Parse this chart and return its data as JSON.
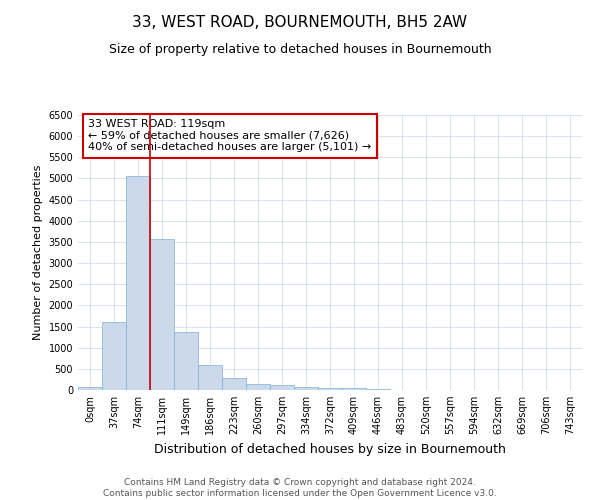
{
  "title": "33, WEST ROAD, BOURNEMOUTH, BH5 2AW",
  "subtitle": "Size of property relative to detached houses in Bournemouth",
  "xlabel": "Distribution of detached houses by size in Bournemouth",
  "ylabel": "Number of detached properties",
  "bar_color": "#ccd9ea",
  "bar_edge_color": "#7aafd4",
  "grid_color": "#c8d8e8",
  "background_color": "#ffffff",
  "categories": [
    "0sqm",
    "37sqm",
    "74sqm",
    "111sqm",
    "149sqm",
    "186sqm",
    "223sqm",
    "260sqm",
    "297sqm",
    "334sqm",
    "372sqm",
    "409sqm",
    "446sqm",
    "483sqm",
    "520sqm",
    "557sqm",
    "594sqm",
    "632sqm",
    "669sqm",
    "706sqm",
    "743sqm"
  ],
  "bar_heights": [
    75,
    1600,
    5050,
    3570,
    1380,
    590,
    290,
    150,
    120,
    75,
    40,
    40,
    30,
    0,
    0,
    0,
    0,
    0,
    0,
    0,
    0
  ],
  "ylim": [
    0,
    6500
  ],
  "yticks": [
    0,
    500,
    1000,
    1500,
    2000,
    2500,
    3000,
    3500,
    4000,
    4500,
    5000,
    5500,
    6000,
    6500
  ],
  "vline_pos": 2.5,
  "property_label": "33 WEST ROAD: 119sqm",
  "annotation_line1": "← 59% of detached houses are smaller (7,626)",
  "annotation_line2": "40% of semi-detached houses are larger (5,101) →",
  "annotation_box_facecolor": "#ffffff",
  "annotation_box_edgecolor": "#cc0000",
  "vline_color": "#cc0000",
  "footnote1": "Contains HM Land Registry data © Crown copyright and database right 2024.",
  "footnote2": "Contains public sector information licensed under the Open Government Licence v3.0.",
  "title_fontsize": 11,
  "subtitle_fontsize": 9,
  "xlabel_fontsize": 9,
  "ylabel_fontsize": 8,
  "tick_fontsize": 7,
  "annotation_fontsize": 8,
  "footnote_fontsize": 6.5
}
